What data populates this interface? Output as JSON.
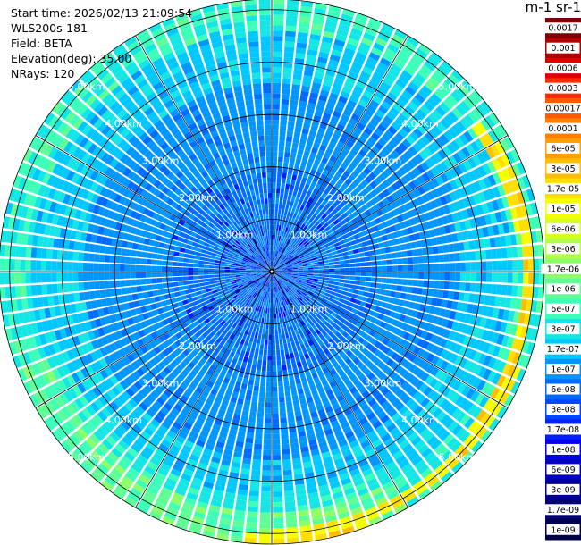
{
  "header": {
    "start_time": "Start time: 2026/02/13 21:09:54",
    "instrument": "WLS200s-181",
    "field": "Field: BETA",
    "elevation": "Elevation(deg): 35.00",
    "nrays": "NRays: 120"
  },
  "colorbar": {
    "unit_title": "m-1 sr-1",
    "ticks": [
      "0.0017",
      "0.001",
      "0.0006",
      "0.0003",
      "0.00017",
      "0.0001",
      "6e-05",
      "3e-05",
      "1.7e-05",
      "1e-05",
      "6e-06",
      "3e-06",
      "1.7e-06",
      "1e-06",
      "6e-07",
      "3e-07",
      "1.7e-07",
      "1e-07",
      "6e-08",
      "3e-08",
      "1.7e-08",
      "1e-08",
      "6e-09",
      "3e-09",
      "1.7e-09",
      "1e-09"
    ],
    "colors": [
      "#7f0000",
      "#b00000",
      "#e00000",
      "#ff2a00",
      "#ff5a00",
      "#ff8000",
      "#ff9f00",
      "#ffbf00",
      "#ffdf00",
      "#f6ff00",
      "#d6ff20",
      "#b0ff46",
      "#8cff6a",
      "#60ff96",
      "#3cffba",
      "#14e6e6",
      "#00c8ff",
      "#0096ff",
      "#006cff",
      "#0048ff",
      "#0020ff",
      "#0000ee",
      "#0000c0",
      "#000096",
      "#000070",
      "#00004a"
    ]
  },
  "chart_data": {
    "type": "heatmap",
    "projection": "polar (PPI)",
    "nrays": 120,
    "range_rings_km": [
      1,
      2,
      3,
      4,
      5
    ],
    "range_labels": [
      "1.00km",
      "2.00km",
      "3.00km",
      "4.00km",
      "5.00km"
    ],
    "max_range_km": 5.2,
    "radial_lines_every_deg": 30,
    "scale": "log10",
    "vmin": 1e-09,
    "vmax": 0.0017
  }
}
